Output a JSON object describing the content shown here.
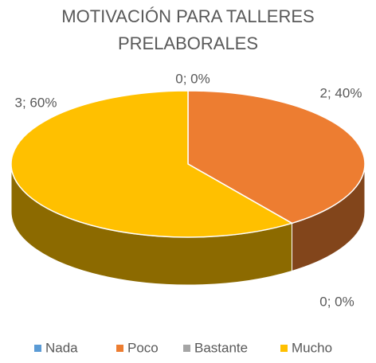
{
  "chart_data": {
    "type": "pie3d",
    "title": [
      "MOTIVACIÓN PARA TALLERES",
      "PRELABORALES"
    ],
    "categories": [
      "Nada",
      "Poco",
      "Bastante",
      "Mucho"
    ],
    "values": [
      0,
      2,
      0,
      3
    ],
    "value_labels": [
      "0; 0%",
      "2; 40%",
      "0; 0%",
      "3; 60%"
    ],
    "colors": [
      "#5b9bd5",
      "#ed7d31",
      "#a5a5a5",
      "#ffc000"
    ],
    "legend": "bottom"
  }
}
